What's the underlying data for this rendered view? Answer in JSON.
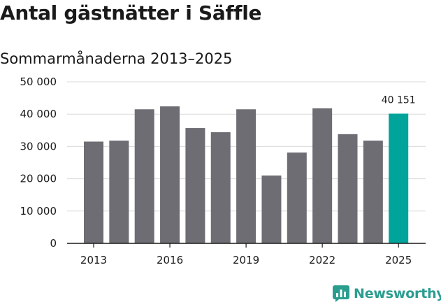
{
  "title": "Antal gästnätter i Säffle",
  "subtitle": "Sommarmånaderna 2013–2025",
  "brand": {
    "name": "Newsworthy",
    "icon": "bar-chart-logo-icon",
    "color": "#2a9d8f"
  },
  "colors": {
    "bar": "#6e6d73",
    "highlight": "#00a49b",
    "grid": "#d9d9d9",
    "axis": "#1a1a1a"
  },
  "chart_data": {
    "type": "bar",
    "title": "Antal gästnätter i Säffle",
    "subtitle": "Sommarmånaderna 2013–2025",
    "xlabel": "",
    "ylabel": "",
    "categories": [
      "2013",
      "2014",
      "2015",
      "2016",
      "2017",
      "2018",
      "2019",
      "2020",
      "2021",
      "2022",
      "2023",
      "2024",
      "2025"
    ],
    "values": [
      31500,
      31800,
      41500,
      42400,
      35700,
      34400,
      41500,
      21000,
      28100,
      41800,
      33800,
      31800,
      40151
    ],
    "highlight_index": 12,
    "data_labels": [
      {
        "category": "2025",
        "text": "40 151"
      }
    ],
    "ylim": [
      0,
      50000
    ],
    "yticks": [
      0,
      10000,
      20000,
      30000,
      40000,
      50000
    ],
    "ytick_labels": [
      "0",
      "10 000",
      "20 000",
      "30 000",
      "40 000",
      "50 000"
    ],
    "xtick_labels": [
      {
        "category": "2013",
        "text": "2013"
      },
      {
        "category": "2016",
        "text": "2016"
      },
      {
        "category": "2019",
        "text": "2019"
      },
      {
        "category": "2022",
        "text": "2022"
      },
      {
        "category": "2025",
        "text": "2025"
      }
    ],
    "grid": true,
    "legend": "none"
  }
}
